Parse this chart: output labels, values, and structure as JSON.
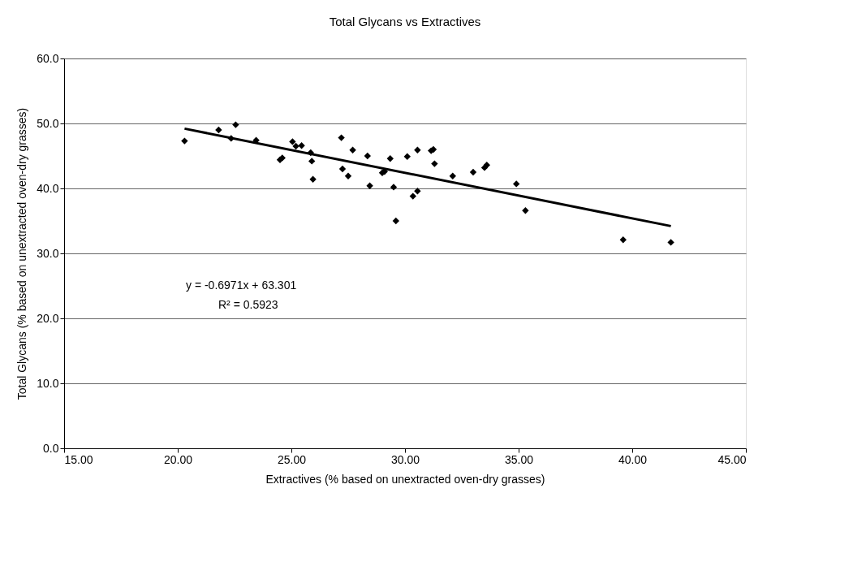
{
  "chart_data": {
    "type": "scatter",
    "title": "Total Glycans vs Extractives",
    "xlabel": "Extractives (% based on unextracted oven-dry grasses)",
    "ylabel": "Total Glycans (% based on unextracted oven-dry grasses)",
    "xlim": [
      15,
      45
    ],
    "ylim": [
      0,
      60
    ],
    "xticks": [
      {
        "value": 15,
        "label": "15.00"
      },
      {
        "value": 20,
        "label": "20.00"
      },
      {
        "value": 25,
        "label": "25.00"
      },
      {
        "value": 30,
        "label": "30.00"
      },
      {
        "value": 35,
        "label": "35.00"
      },
      {
        "value": 40,
        "label": "40.00"
      },
      {
        "value": 45,
        "label": "45.00"
      }
    ],
    "yticks": [
      {
        "value": 0,
        "label": "0.0"
      },
      {
        "value": 10,
        "label": "10.0"
      },
      {
        "value": 20,
        "label": "20.0"
      },
      {
        "value": 30,
        "label": "30.0"
      },
      {
        "value": 40,
        "label": "40.0"
      },
      {
        "value": 50,
        "label": "50.0"
      },
      {
        "value": 60,
        "label": "60.0"
      }
    ],
    "grid": "y",
    "annotations": [
      "y = -0.6971x + 63.301",
      "R² = 0.5923"
    ],
    "series": [
      {
        "marker": "diamond",
        "color": "#000000",
        "x": [
          20.3,
          21.8,
          22.55,
          22.35,
          23.45,
          25.05,
          25.2,
          25.45,
          24.5,
          24.6,
          25.85,
          25.9,
          25.95,
          27.2,
          27.7,
          28.35,
          27.25,
          27.5,
          28.45,
          29.35,
          29.0,
          29.1,
          29.5,
          29.6,
          30.1,
          30.55,
          31.15,
          31.25,
          31.3,
          30.35,
          30.55,
          32.1,
          33.0,
          33.5,
          33.6,
          34.9,
          35.3,
          39.6,
          41.7
        ],
        "values": [
          47.3,
          49.0,
          49.8,
          47.7,
          47.4,
          47.2,
          46.5,
          46.6,
          44.4,
          44.7,
          45.5,
          44.2,
          41.4,
          47.8,
          45.9,
          45.0,
          43.0,
          41.9,
          40.4,
          44.6,
          42.4,
          42.6,
          40.2,
          35.0,
          44.9,
          45.9,
          45.8,
          46.0,
          43.8,
          38.8,
          39.6,
          41.9,
          42.5,
          43.2,
          43.6,
          40.7,
          36.6,
          32.1,
          31.7
        ]
      },
      {
        "type": "line",
        "line_style": "solid",
        "color": "#000000",
        "x": [
          20.3,
          41.7
        ],
        "values": [
          49.2,
          34.2
        ]
      }
    ]
  }
}
